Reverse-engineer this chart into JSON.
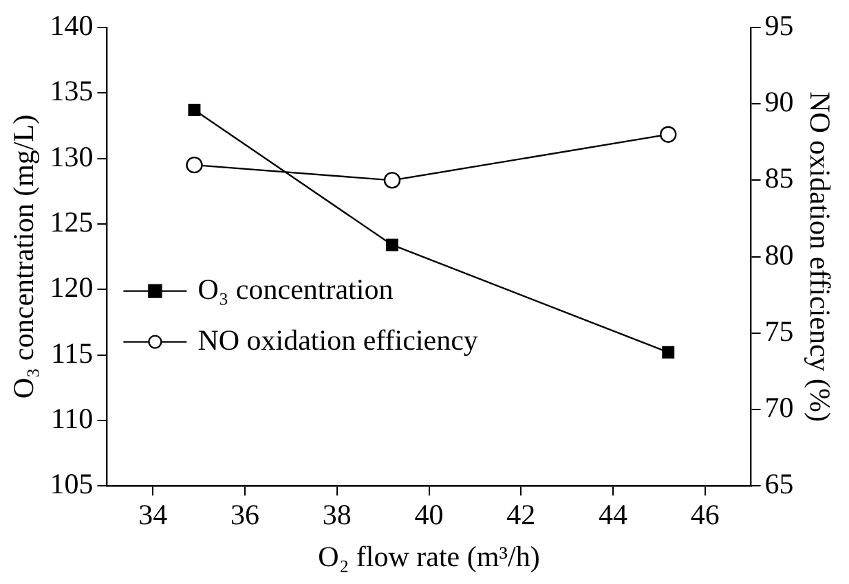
{
  "chart_data": {
    "type": "line",
    "xlabel": "O₂ flow rate (m³/h)",
    "ylabel": "O₃ concentration (mg/L)",
    "y2label": "NO oxidation efficiency (%)",
    "xlim": [
      33,
      47
    ],
    "xticks": [
      34,
      36,
      38,
      40,
      42,
      44,
      46
    ],
    "ylim": [
      105,
      140
    ],
    "yticks": [
      105,
      110,
      115,
      120,
      125,
      130,
      135,
      140
    ],
    "y2lim": [
      65,
      95
    ],
    "y2ticks": [
      65,
      70,
      75,
      80,
      85,
      90,
      95
    ],
    "legend": "left",
    "grid": false,
    "line_style": "solid",
    "series": [
      {
        "name": "O₃ concentration",
        "color": "#000000",
        "marker": "square",
        "x": [
          34.9,
          39.2,
          45.2
        ],
        "values": [
          133.7,
          123.4,
          115.2
        ]
      },
      {
        "name": "NO oxidation efficiency",
        "color": "#000000",
        "marker": "circle",
        "axis": "y2",
        "x": [
          34.9,
          39.2,
          45.2
        ],
        "values": [
          86.0,
          85.0,
          88.0
        ]
      }
    ]
  }
}
